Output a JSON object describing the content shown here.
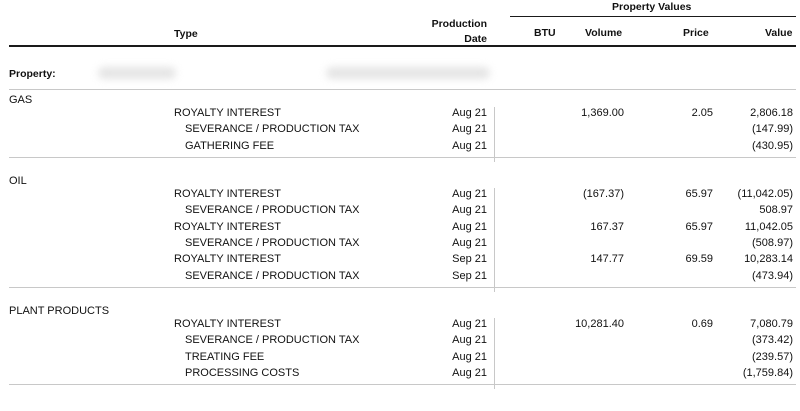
{
  "header": {
    "group_title": "Property Values",
    "col_type": "Type",
    "col_prod_date_line1": "Production",
    "col_prod_date_line2": "Date",
    "col_btu": "BTU",
    "col_volume": "Volume",
    "col_price": "Price",
    "col_value": "Value"
  },
  "property_label": "Property:",
  "sections": [
    {
      "name": "GAS",
      "rows": [
        {
          "type": "ROYALTY INTEREST",
          "date": "Aug 21",
          "btu": "",
          "volume": "1,369.00",
          "price": "2.05",
          "value": "2,806.18"
        },
        {
          "type": "SEVERANCE / PRODUCTION TAX",
          "date": "Aug 21",
          "btu": "",
          "volume": "",
          "price": "",
          "value": "(147.99)"
        },
        {
          "type": "GATHERING FEE",
          "date": "Aug 21",
          "btu": "",
          "volume": "",
          "price": "",
          "value": "(430.95)"
        }
      ]
    },
    {
      "name": "OIL",
      "rows": [
        {
          "type": "ROYALTY INTEREST",
          "date": "Aug 21",
          "btu": "",
          "volume": "(167.37)",
          "price": "65.97",
          "value": "(11,042.05)"
        },
        {
          "type": "SEVERANCE / PRODUCTION TAX",
          "date": "Aug 21",
          "btu": "",
          "volume": "",
          "price": "",
          "value": "508.97"
        },
        {
          "type": "ROYALTY INTEREST",
          "date": "Aug 21",
          "btu": "",
          "volume": "167.37",
          "price": "65.97",
          "value": "11,042.05"
        },
        {
          "type": "SEVERANCE / PRODUCTION TAX",
          "date": "Aug 21",
          "btu": "",
          "volume": "",
          "price": "",
          "value": "(508.97)"
        },
        {
          "type": "ROYALTY INTEREST",
          "date": "Sep 21",
          "btu": "",
          "volume": "147.77",
          "price": "69.59",
          "value": "10,283.14"
        },
        {
          "type": "SEVERANCE / PRODUCTION TAX",
          "date": "Sep 21",
          "btu": "",
          "volume": "",
          "price": "",
          "value": "(473.94)"
        }
      ]
    },
    {
      "name": "PLANT PRODUCTS",
      "rows": [
        {
          "type": "ROYALTY INTEREST",
          "date": "Aug 21",
          "btu": "",
          "volume": "10,281.40",
          "price": "0.69",
          "value": "7,080.79"
        },
        {
          "type": "SEVERANCE / PRODUCTION TAX",
          "date": "Aug 21",
          "btu": "",
          "volume": "",
          "price": "",
          "value": "(373.42)"
        },
        {
          "type": "TREATING FEE",
          "date": "Aug 21",
          "btu": "",
          "volume": "",
          "price": "",
          "value": "(239.57)"
        },
        {
          "type": "PROCESSING COSTS",
          "date": "Aug 21",
          "btu": "",
          "volume": "",
          "price": "",
          "value": "(1,759.84)"
        }
      ]
    }
  ],
  "colors": {
    "rule_dark": "#1a1a1a",
    "rule_light": "#c8c8c8",
    "text": "#111111"
  }
}
